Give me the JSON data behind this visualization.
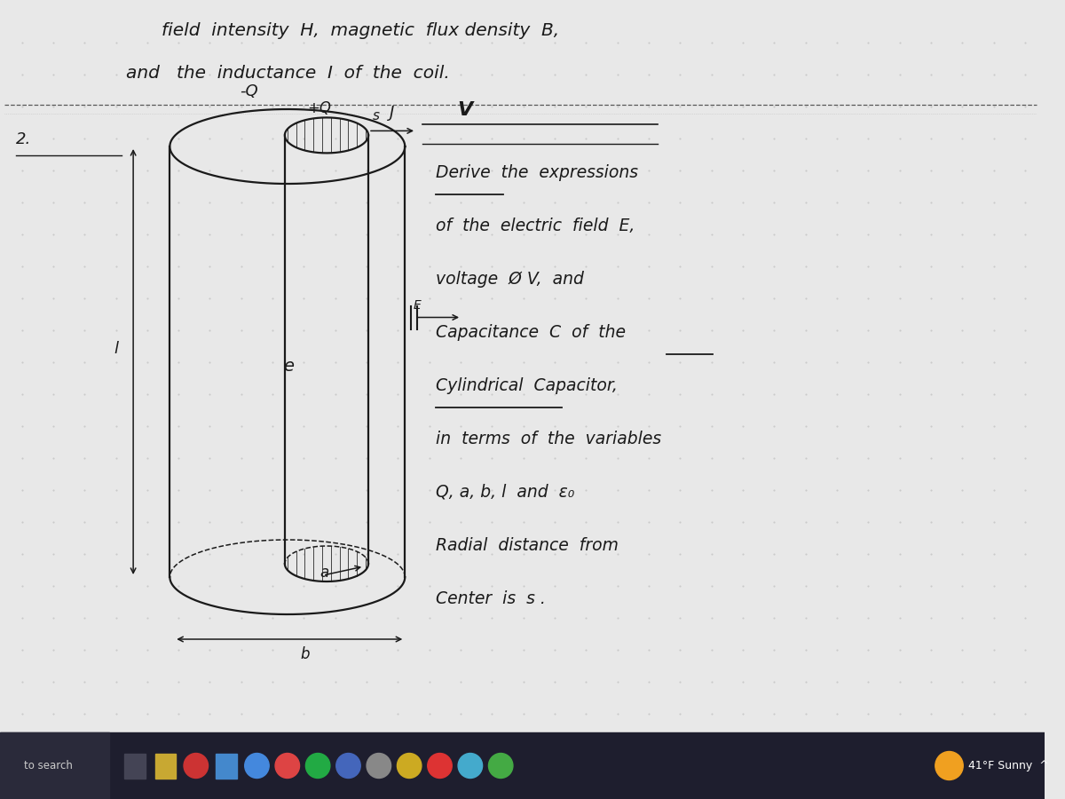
{
  "bg_color": "#e8e8e8",
  "paper_color": "#f0eeea",
  "text_color": "#1a1a1a",
  "title_line1": "field  intensity  H,  magnetic  flux density  B,",
  "title_line2": "and   the  inductance  I  of  the  coil.",
  "derive_text": [
    "Derive  the  expressions",
    "of  the  electric  field  E,",
    "voltage  Ø V,  and",
    "Capacitance  C  of  the",
    "Cylindrical  Capacitor,",
    "in  terms  of  the  variables",
    "Q, a, b, l  and  ε₀",
    "Radial  distance  from",
    "Center  is  s ."
  ],
  "label_minus_Q": "-Q",
  "label_plus_Q": "+Q",
  "label_s": "s",
  "label_l": "l",
  "label_e": "e",
  "label_a": "a",
  "label_b": "b",
  "label_E_arrow": "E",
  "label_V": "V",
  "label_J": "J",
  "label_2": "2."
}
